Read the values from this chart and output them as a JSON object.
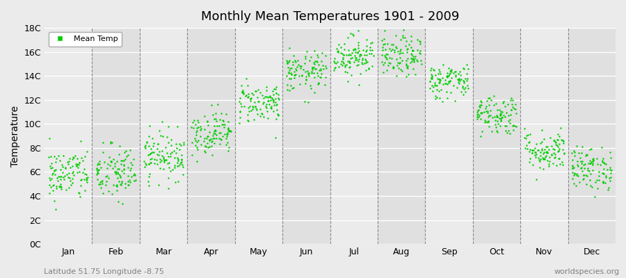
{
  "title": "Monthly Mean Temperatures 1901 - 2009",
  "ylabel": "Temperature",
  "xlabel_bottom_left": "Latitude 51.75 Longitude -8.75",
  "xlabel_bottom_right": "worldspecies.org",
  "legend_label": "Mean Temp",
  "dot_color": "#00CC00",
  "dot_size": 3,
  "bg_color": "#EBEBEB",
  "plot_bg_color": "#EBEBEB",
  "grid_color": "#FFFFFF",
  "dashed_vline_color": "#888888",
  "ytick_labels": [
    "0C",
    "2C",
    "4C",
    "6C",
    "8C",
    "10C",
    "12C",
    "14C",
    "16C",
    "18C"
  ],
  "ytick_values": [
    0,
    2,
    4,
    6,
    8,
    10,
    12,
    14,
    16,
    18
  ],
  "months": [
    "Jan",
    "Feb",
    "Mar",
    "Apr",
    "May",
    "Jun",
    "Jul",
    "Aug",
    "Sep",
    "Oct",
    "Nov",
    "Dec"
  ],
  "year_start": 1901,
  "year_end": 2009,
  "monthly_means": [
    5.8,
    5.9,
    7.4,
    9.3,
    11.8,
    14.3,
    15.7,
    15.6,
    13.6,
    10.8,
    7.8,
    6.3
  ],
  "monthly_stds": [
    1.1,
    1.2,
    1.0,
    0.9,
    0.85,
    0.85,
    0.85,
    0.85,
    0.75,
    0.85,
    0.85,
    0.9
  ],
  "ylim": [
    0,
    18
  ],
  "xlim_start": 0,
  "xlim_end": 12,
  "seed": 42,
  "band_colors": [
    "#EBEBEB",
    "#E0E0E0"
  ]
}
